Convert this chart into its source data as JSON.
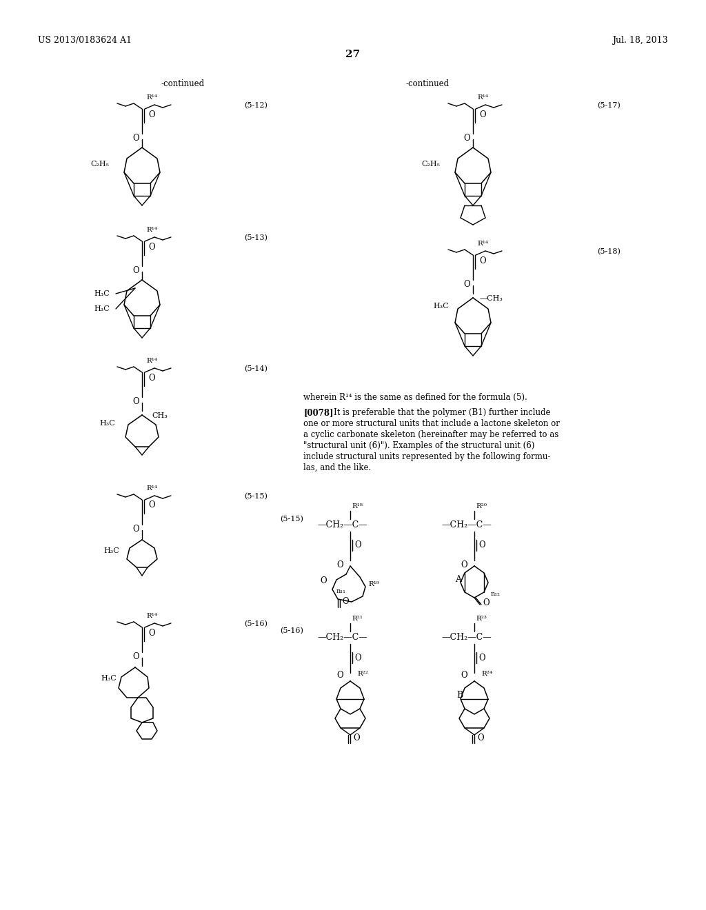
{
  "patent_number": "US 2013/0183624 A1",
  "date": "Jul. 18, 2013",
  "page_number": "27",
  "background_color": "#ffffff",
  "header_left": "US 2013/0183624 A1",
  "header_right": "Jul. 18, 2013",
  "continued_left": "-continued",
  "continued_right": "-continued"
}
